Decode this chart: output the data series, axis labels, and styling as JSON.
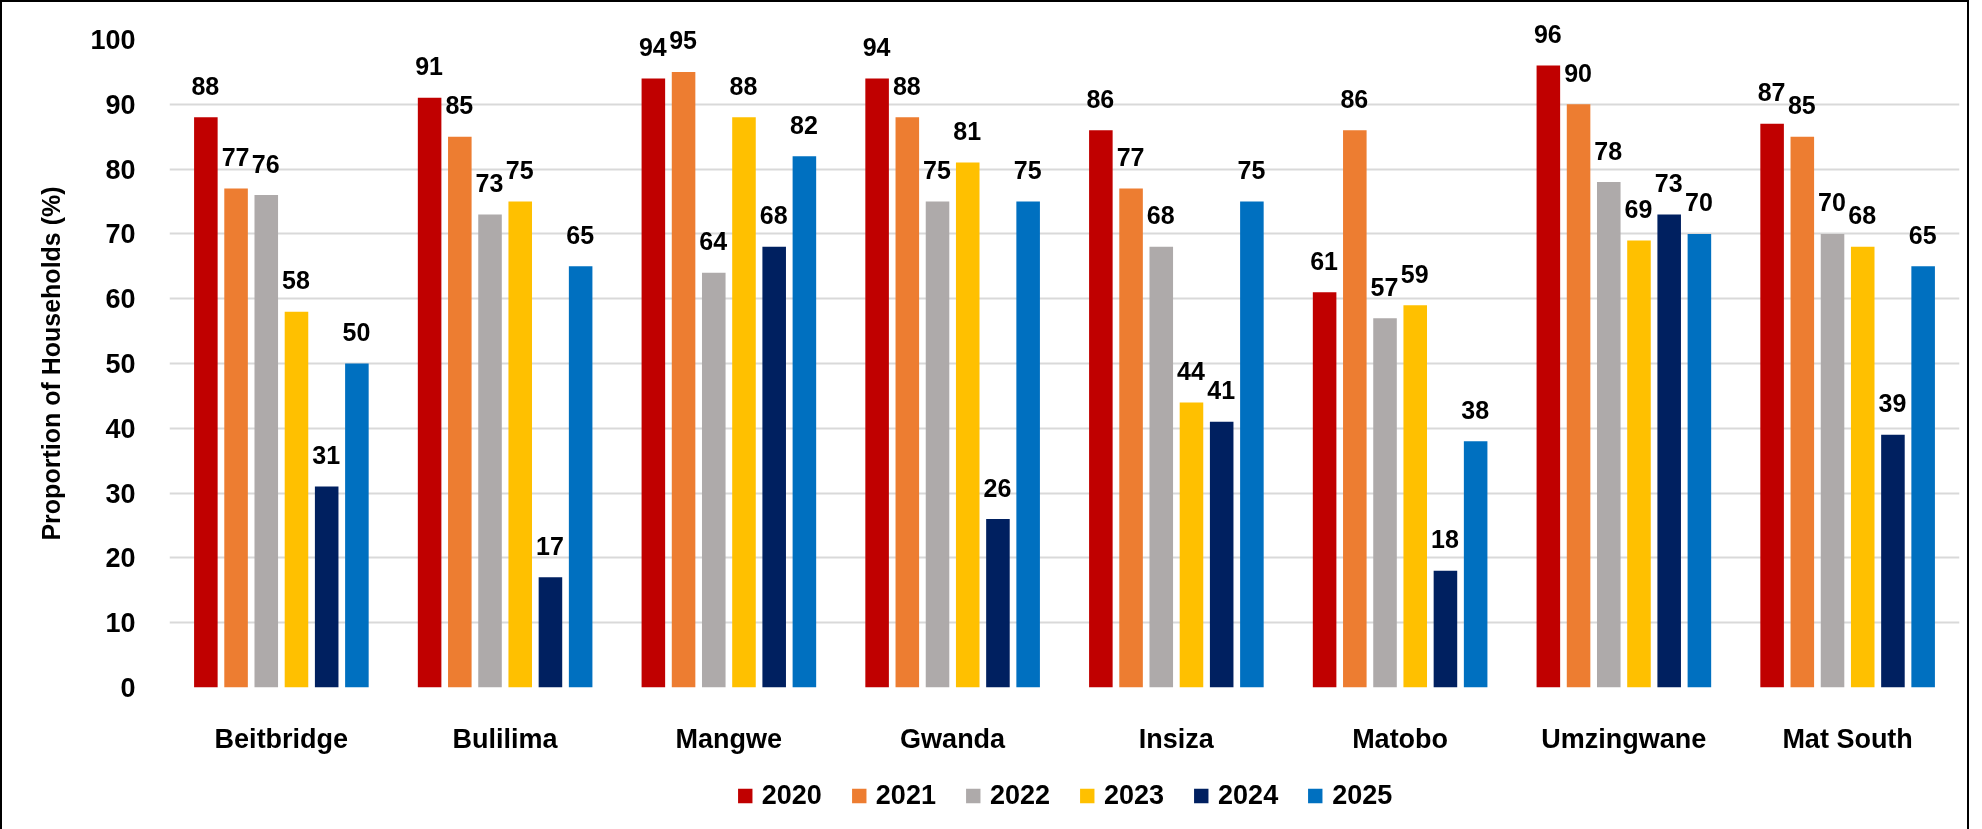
{
  "chart_data": {
    "type": "bar",
    "ylabel": "Proportion of Households (%)",
    "categories": [
      "Beitbridge",
      "Bulilima",
      "Mangwe",
      "Gwanda",
      "Insiza",
      "Matobo",
      "Umzingwane",
      "Mat South"
    ],
    "series": [
      {
        "name": "2020",
        "color": "#c00000",
        "values": [
          88,
          91,
          94,
          94,
          86,
          61,
          96,
          87
        ]
      },
      {
        "name": "2021",
        "color": "#ed7d31",
        "values": [
          77,
          85,
          95,
          88,
          77,
          86,
          90,
          85
        ]
      },
      {
        "name": "2022",
        "color": "#aeaaaa",
        "values": [
          76,
          73,
          64,
          75,
          68,
          57,
          78,
          70
        ]
      },
      {
        "name": "2023",
        "color": "#ffc000",
        "values": [
          58,
          75,
          88,
          81,
          44,
          59,
          69,
          68
        ]
      },
      {
        "name": "2024",
        "color": "#002060",
        "values": [
          31,
          17,
          68,
          26,
          41,
          18,
          73,
          39
        ]
      },
      {
        "name": "2025",
        "color": "#0070c0",
        "values": [
          50,
          65,
          82,
          75,
          75,
          38,
          70,
          65
        ]
      }
    ],
    "ylim": [
      0,
      100
    ],
    "yticks": [
      0,
      10,
      20,
      30,
      40,
      50,
      60,
      70,
      80,
      90,
      100
    ],
    "grid": "y",
    "legend": "bottom",
    "data_labels": true
  }
}
